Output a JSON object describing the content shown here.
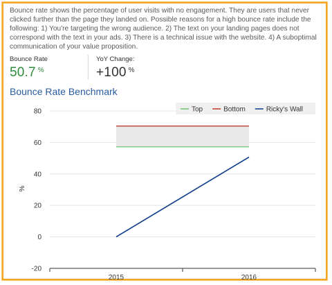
{
  "description": "Bounce rate shows the percentage of user visits with no engagement. They are users that never clicked further than the page they landed on. Possible reasons for a high bounce rate include the following: 1) You're targeting the wrong audience. 2) The text on your landing pages does not correspond with the text in your ads. 3) There is a technical issue with the website. 4) A suboptimal communication of your value proposition.",
  "metrics": {
    "bounce_rate": {
      "label": "Bounce Rate",
      "value": "50.7",
      "unit": "%",
      "color": "#2e8b3a"
    },
    "yoy_change": {
      "label": "YoY Change:",
      "value": "+100",
      "unit": "%",
      "color": "#333333"
    }
  },
  "chart_data": {
    "type": "line",
    "title": "Bounce Rate Benchmark",
    "x": [
      "2015",
      "2016"
    ],
    "ylabel": "%",
    "ylim": [
      -20,
      80
    ],
    "yticks": [
      -20,
      0,
      20,
      40,
      60,
      80
    ],
    "grid": true,
    "legend_position": "top-right",
    "band": {
      "from": 57.2,
      "to": 70.4,
      "color": "#e8e8e8"
    },
    "series": [
      {
        "name": "Top",
        "values": [
          57.2,
          57.2
        ],
        "color": "#6cc36c"
      },
      {
        "name": "Bottom",
        "values": [
          70.4,
          70.4
        ],
        "color": "#c0392b"
      },
      {
        "name": "Ricky's Wall",
        "values": [
          0,
          50.7
        ],
        "color": "#0b3a8a"
      }
    ]
  }
}
